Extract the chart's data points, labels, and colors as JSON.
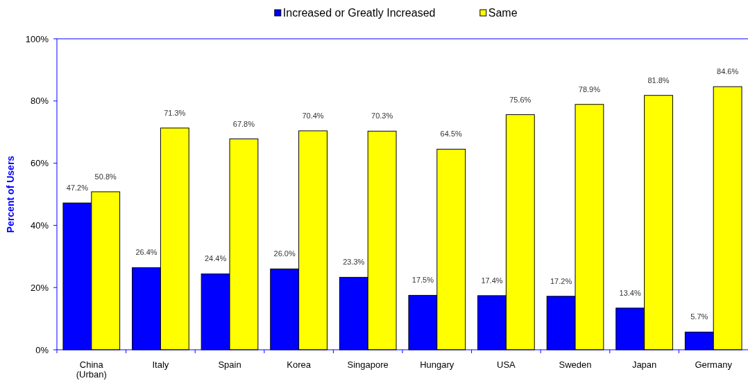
{
  "chart_data": {
    "type": "bar",
    "ylabel": "Percent of Users",
    "categories": [
      "China (Urban)",
      "Italy",
      "Spain",
      "Korea",
      "Singapore",
      "Hungary",
      "USA",
      "Sweden",
      "Japan",
      "Germany"
    ],
    "series": [
      {
        "name": "Increased or Greatly Increased",
        "color": "#0000ff",
        "values": [
          47.2,
          26.4,
          24.4,
          26.0,
          23.3,
          17.5,
          17.4,
          17.2,
          13.4,
          5.7
        ],
        "value_labels": [
          "47.2%",
          "26.4%",
          "24.4%",
          "26.0%",
          "23.3%",
          "17.5%",
          "17.4%",
          "17.2%",
          "13.4%",
          "5.7%"
        ]
      },
      {
        "name": "Same",
        "color": "#ffff00",
        "values": [
          50.8,
          71.3,
          67.8,
          70.4,
          70.3,
          64.5,
          75.6,
          78.9,
          81.8,
          84.6
        ],
        "value_labels": [
          "50.8%",
          "71.3%",
          "67.8%",
          "70.4%",
          "70.3%",
          "64.5%",
          "75.6%",
          "78.9%",
          "81.8%",
          "84.6%"
        ]
      }
    ],
    "ylim": [
      0,
      100
    ],
    "yticks": [
      {
        "value": 0,
        "label": "0%"
      },
      {
        "value": 20,
        "label": "20%"
      },
      {
        "value": 40,
        "label": "40%"
      },
      {
        "value": 60,
        "label": "60%"
      },
      {
        "value": 80,
        "label": "80%"
      },
      {
        "value": 100,
        "label": "100%"
      }
    ],
    "legend": "top"
  }
}
